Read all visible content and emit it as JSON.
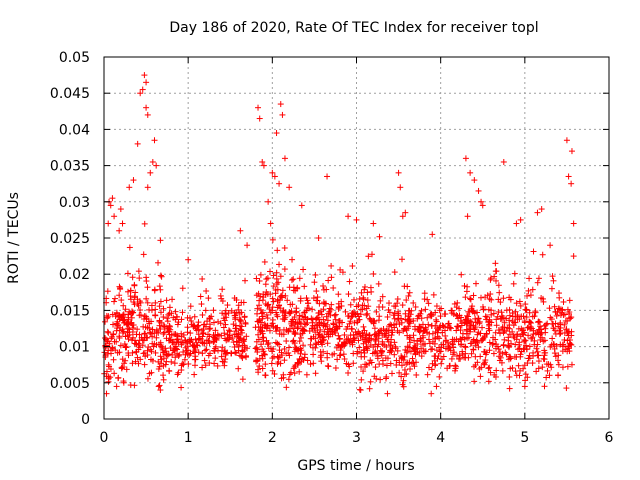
{
  "chart_data": {
    "type": "scatter",
    "title": "Day 186 of 2020, Rate Of TEC Index for receiver topl",
    "xlabel": "GPS time / hours",
    "ylabel": "ROTI / TECUs",
    "xlim": [
      0,
      6
    ],
    "ylim": [
      0,
      0.05
    ],
    "x_ticks": [
      "0",
      "1",
      "2",
      "3",
      "4",
      "5",
      "6"
    ],
    "y_ticks": [
      "0",
      "0.005",
      "0.01",
      "0.015",
      "0.02",
      "0.025",
      "0.03",
      "0.035",
      "0.04",
      "0.045",
      "0.05"
    ],
    "grid": true,
    "marker": "+",
    "series": [
      {
        "color": "#ff0000",
        "outliers": [
          [
            0.03,
            0.0035
          ],
          [
            0.05,
            0.027
          ],
          [
            0.06,
            0.03
          ],
          [
            0.08,
            0.0295
          ],
          [
            0.1,
            0.0305
          ],
          [
            0.12,
            0.028
          ],
          [
            0.15,
            0.0045
          ],
          [
            0.18,
            0.026
          ],
          [
            0.2,
            0.029
          ],
          [
            0.22,
            0.027
          ],
          [
            0.35,
            0.033
          ],
          [
            0.4,
            0.038
          ],
          [
            0.43,
            0.045
          ],
          [
            0.46,
            0.0455
          ],
          [
            0.48,
            0.0475
          ],
          [
            0.5,
            0.0465
          ],
          [
            0.5,
            0.043
          ],
          [
            0.52,
            0.042
          ],
          [
            0.55,
            0.034
          ],
          [
            0.58,
            0.0355
          ],
          [
            0.6,
            0.0385
          ],
          [
            0.62,
            0.035
          ],
          [
            0.65,
            0.0045
          ],
          [
            0.3,
            0.032
          ],
          [
            0.52,
            0.032
          ],
          [
            1.0,
            0.022
          ],
          [
            1.62,
            0.026
          ],
          [
            1.65,
            0.0055
          ],
          [
            1.7,
            0.024
          ],
          [
            1.83,
            0.043
          ],
          [
            1.85,
            0.0415
          ],
          [
            1.88,
            0.0355
          ],
          [
            1.9,
            0.035
          ],
          [
            1.95,
            0.03
          ],
          [
            1.98,
            0.027
          ],
          [
            2.0,
            0.034
          ],
          [
            2.03,
            0.0335
          ],
          [
            2.05,
            0.0395
          ],
          [
            2.08,
            0.0325
          ],
          [
            2.1,
            0.0435
          ],
          [
            2.12,
            0.042
          ],
          [
            2.15,
            0.036
          ],
          [
            2.2,
            0.032
          ],
          [
            2.35,
            0.0295
          ],
          [
            2.55,
            0.025
          ],
          [
            2.65,
            0.0335
          ],
          [
            2.9,
            0.028
          ],
          [
            3.0,
            0.0275
          ],
          [
            3.05,
            0.004
          ],
          [
            3.2,
            0.027
          ],
          [
            3.5,
            0.034
          ],
          [
            3.52,
            0.032
          ],
          [
            3.55,
            0.028
          ],
          [
            3.58,
            0.0285
          ],
          [
            3.9,
            0.0255
          ],
          [
            3.95,
            0.0045
          ],
          [
            4.3,
            0.036
          ],
          [
            4.32,
            0.028
          ],
          [
            4.35,
            0.034
          ],
          [
            4.4,
            0.033
          ],
          [
            4.45,
            0.0315
          ],
          [
            4.48,
            0.03
          ],
          [
            4.5,
            0.0295
          ],
          [
            4.65,
            0.0215
          ],
          [
            4.75,
            0.0355
          ],
          [
            4.9,
            0.027
          ],
          [
            4.95,
            0.0275
          ],
          [
            5.0,
            0.0045
          ],
          [
            5.15,
            0.0285
          ],
          [
            5.2,
            0.029
          ],
          [
            5.3,
            0.024
          ],
          [
            5.5,
            0.0385
          ],
          [
            5.52,
            0.0335
          ],
          [
            5.55,
            0.0325
          ],
          [
            5.56,
            0.037
          ],
          [
            5.58,
            0.027
          ],
          [
            5.58,
            0.0225
          ],
          [
            5.56,
            0.0075
          ]
        ],
        "clusters": [
          {
            "x_start": 0.0,
            "x_end": 0.35,
            "y_mid": 0.0115,
            "spread": 0.007,
            "count": 150
          },
          {
            "x_start": 0.35,
            "x_end": 0.7,
            "y_mid": 0.012,
            "spread": 0.0075,
            "count": 130
          },
          {
            "x_start": 0.7,
            "x_end": 1.1,
            "y_mid": 0.0105,
            "spread": 0.0045,
            "count": 140
          },
          {
            "x_start": 1.1,
            "x_end": 1.7,
            "y_mid": 0.011,
            "spread": 0.005,
            "count": 190
          },
          {
            "x_start": 1.8,
            "x_end": 2.3,
            "y_mid": 0.0125,
            "spread": 0.0075,
            "count": 230
          },
          {
            "x_start": 2.3,
            "x_end": 3.0,
            "y_mid": 0.012,
            "spread": 0.006,
            "count": 260
          },
          {
            "x_start": 3.0,
            "x_end": 3.6,
            "y_mid": 0.0115,
            "spread": 0.0065,
            "count": 230
          },
          {
            "x_start": 3.6,
            "x_end": 4.3,
            "y_mid": 0.011,
            "spread": 0.0055,
            "count": 240
          },
          {
            "x_start": 4.3,
            "x_end": 4.9,
            "y_mid": 0.0115,
            "spread": 0.006,
            "count": 220
          },
          {
            "x_start": 4.9,
            "x_end": 5.57,
            "y_mid": 0.0115,
            "spread": 0.0065,
            "count": 230
          }
        ]
      }
    ]
  }
}
